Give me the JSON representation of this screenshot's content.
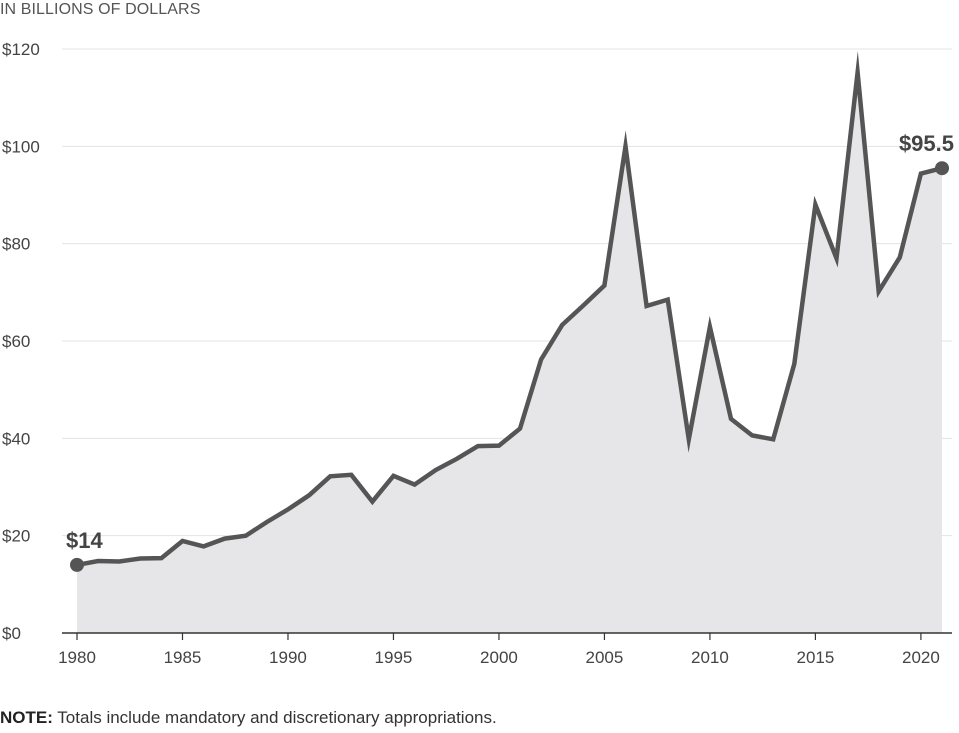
{
  "unit_label": "IN BILLIONS OF DOLLARS",
  "note": {
    "label": "NOTE:",
    "text": " Totals include mandatory and discretionary appropriations."
  },
  "colors": {
    "line": "#555555",
    "area": "#e6e6e8",
    "grid": "#e3e3e3",
    "axis": "#333333",
    "point": "#555555"
  },
  "chart_data": {
    "type": "area",
    "title": "",
    "xlabel": "",
    "ylabel": "IN BILLIONS OF DOLLARS",
    "xlim": [
      1980,
      2021
    ],
    "ylim": [
      0,
      120
    ],
    "grid": true,
    "x_ticks": [
      1980,
      1985,
      1990,
      1995,
      2000,
      2005,
      2010,
      2015,
      2020
    ],
    "x_tick_labels": [
      "1980",
      "1985",
      "1990",
      "1995",
      "2000",
      "2005",
      "2010",
      "2015",
      "2020"
    ],
    "y_ticks": [
      0,
      20,
      40,
      60,
      80,
      100,
      120
    ],
    "y_tick_labels": [
      "$0",
      "$20",
      "$40",
      "$60",
      "$80",
      "$100",
      "$120"
    ],
    "x": [
      1980,
      1981,
      1982,
      1983,
      1984,
      1985,
      1986,
      1987,
      1988,
      1989,
      1990,
      1991,
      1992,
      1993,
      1994,
      1995,
      1996,
      1997,
      1998,
      1999,
      2000,
      2001,
      2002,
      2003,
      2004,
      2005,
      2006,
      2007,
      2008,
      2009,
      2010,
      2011,
      2012,
      2013,
      2014,
      2015,
      2016,
      2017,
      2018,
      2019,
      2020,
      2021
    ],
    "y": [
      14,
      14.8,
      14.7,
      15.3,
      15.4,
      18.9,
      17.8,
      19.4,
      20,
      22.8,
      25.4,
      28.3,
      32.2,
      32.5,
      27,
      32.3,
      30.5,
      33.5,
      35.8,
      38.4,
      38.5,
      42,
      56.2,
      63.3,
      67.3,
      71.4,
      100,
      67.2,
      68.5,
      39.8,
      62.9,
      44,
      40.6,
      39.8,
      55.3,
      88,
      77,
      115.2,
      70.2,
      77.2,
      94.4,
      95.5
    ],
    "annotations": [
      {
        "x": 1980,
        "y": 14,
        "text": "$14"
      },
      {
        "x": 2021,
        "y": 95.5,
        "text": "$95.5"
      }
    ]
  }
}
